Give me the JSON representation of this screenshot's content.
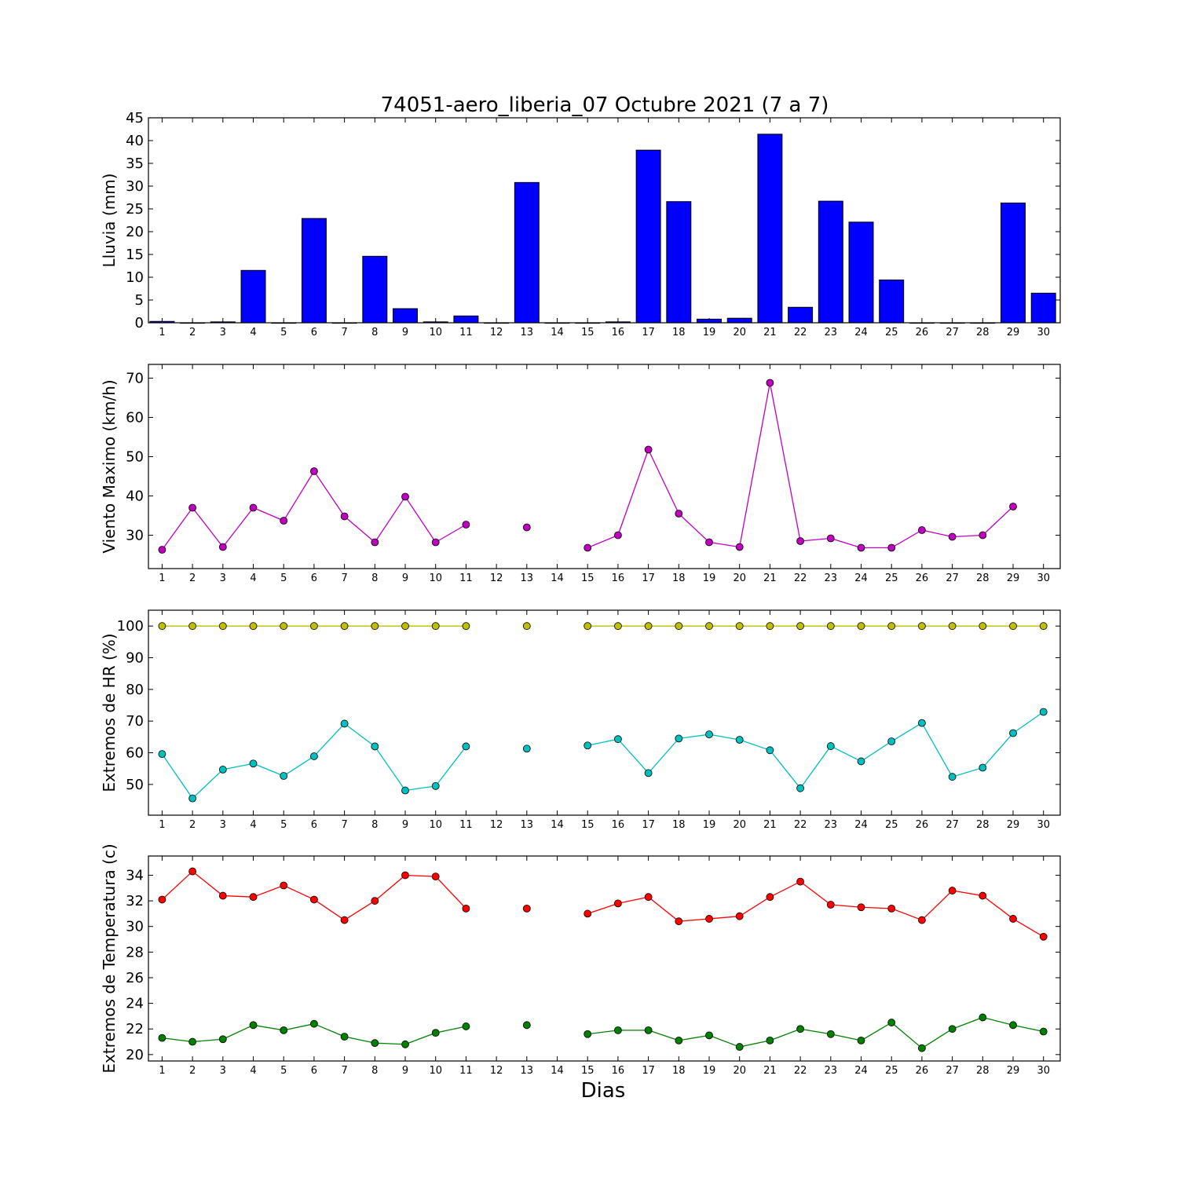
{
  "figure": {
    "title": "74051-aero_liberia_07 Octubre 2021  (7 a 7)",
    "xlabel": "Dias"
  },
  "chart_data": [
    {
      "type": "bar",
      "name": "lluvia",
      "ylabel": "Lluvia (mm)",
      "x": [
        1,
        2,
        3,
        4,
        5,
        6,
        7,
        8,
        9,
        10,
        11,
        12,
        13,
        14,
        15,
        16,
        17,
        18,
        19,
        20,
        21,
        22,
        23,
        24,
        25,
        26,
        27,
        28,
        29,
        30
      ],
      "values": [
        0.3,
        0,
        0.2,
        11.5,
        0,
        22.9,
        0,
        14.6,
        3.1,
        0.2,
        1.5,
        0,
        30.8,
        0,
        0,
        0.2,
        37.9,
        26.6,
        0.8,
        1.0,
        41.4,
        3.4,
        26.7,
        22.1,
        9.4,
        0,
        0,
        0,
        26.3,
        6.5
      ],
      "ylim": [
        0,
        45
      ],
      "yticks": [
        0,
        5,
        10,
        15,
        20,
        25,
        30,
        35,
        40,
        45
      ],
      "color": "#0000ff"
    },
    {
      "type": "line",
      "name": "viento",
      "ylabel": "Viento Maximo (km/h)",
      "x": [
        1,
        2,
        3,
        4,
        5,
        6,
        7,
        8,
        9,
        10,
        11,
        12,
        13,
        14,
        15,
        16,
        17,
        18,
        19,
        20,
        21,
        22,
        23,
        24,
        25,
        26,
        27,
        28,
        29,
        30
      ],
      "series": [
        {
          "color": "#bf00bf",
          "values": [
            26.3,
            37.0,
            27.0,
            37.0,
            33.7,
            46.3,
            34.8,
            28.2,
            39.8,
            28.2,
            32.7,
            null,
            32.0,
            null,
            26.8,
            30.0,
            51.8,
            35.5,
            28.2,
            27.0,
            68.8,
            28.5,
            29.2,
            26.8,
            26.8,
            31.3,
            29.6,
            30.0,
            37.3,
            null
          ]
        }
      ],
      "ylim": [
        21.5,
        73.5
      ],
      "yticks": [
        30,
        40,
        50,
        60,
        70
      ]
    },
    {
      "type": "line",
      "name": "humedad",
      "ylabel": "Extremos de HR (%)",
      "x": [
        1,
        2,
        3,
        4,
        5,
        6,
        7,
        8,
        9,
        10,
        11,
        12,
        13,
        14,
        15,
        16,
        17,
        18,
        19,
        20,
        21,
        22,
        23,
        24,
        25,
        26,
        27,
        28,
        29,
        30
      ],
      "series": [
        {
          "color": "#bfbf00",
          "values": [
            100,
            100,
            100,
            100,
            100,
            100,
            100,
            100,
            100,
            100,
            100,
            null,
            100,
            null,
            100,
            100,
            100,
            100,
            100,
            100,
            100,
            100,
            100,
            100,
            100,
            100,
            100,
            100,
            100,
            100
          ]
        },
        {
          "color": "#00bfbf",
          "values": [
            59.6,
            45.6,
            54.7,
            56.6,
            52.7,
            58.9,
            69.2,
            62.0,
            48.1,
            49.5,
            62.0,
            null,
            61.3,
            null,
            62.3,
            64.3,
            53.6,
            64.5,
            65.8,
            64.1,
            60.8,
            48.8,
            62.1,
            57.3,
            63.6,
            69.4,
            52.4,
            55.3,
            66.2,
            72.9
          ]
        }
      ],
      "ylim": [
        40.3,
        105
      ],
      "yticks": [
        50,
        60,
        70,
        80,
        90,
        100
      ]
    },
    {
      "type": "line",
      "name": "temperatura",
      "ylabel": "Extremos de Temperatura (c)",
      "x": [
        1,
        2,
        3,
        4,
        5,
        6,
        7,
        8,
        9,
        10,
        11,
        12,
        13,
        14,
        15,
        16,
        17,
        18,
        19,
        20,
        21,
        22,
        23,
        24,
        25,
        26,
        27,
        28,
        29,
        30
      ],
      "series": [
        {
          "color": "#ff0000",
          "values": [
            32.1,
            34.3,
            32.4,
            32.3,
            33.2,
            32.1,
            30.5,
            32.0,
            34.0,
            33.9,
            31.4,
            null,
            31.4,
            null,
            31.0,
            31.8,
            32.3,
            30.4,
            30.6,
            30.8,
            32.3,
            33.5,
            31.7,
            31.5,
            31.4,
            30.5,
            32.8,
            32.4,
            30.6,
            29.2
          ]
        },
        {
          "color": "#008000",
          "values": [
            21.3,
            21.0,
            21.2,
            22.3,
            21.9,
            22.4,
            21.4,
            20.9,
            20.8,
            21.7,
            22.2,
            null,
            22.3,
            null,
            21.6,
            21.9,
            21.9,
            21.1,
            21.5,
            20.6,
            21.1,
            22.0,
            21.6,
            21.1,
            22.5,
            20.5,
            22.0,
            22.9,
            22.3,
            21.8
          ]
        }
      ],
      "ylim": [
        19.5,
        35.5
      ],
      "yticks": [
        20,
        22,
        24,
        26,
        28,
        30,
        32,
        34
      ]
    }
  ]
}
